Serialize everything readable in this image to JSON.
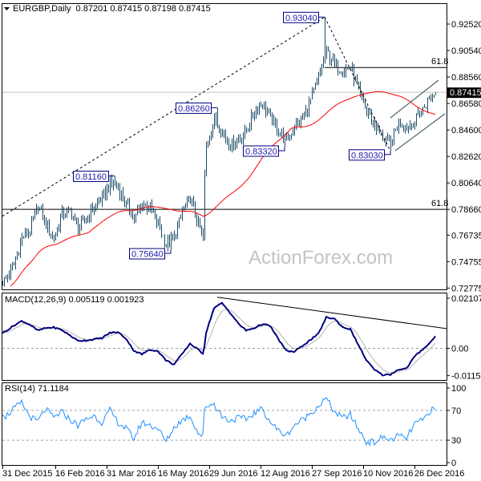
{
  "header": {
    "symbol_label": "EURGBP,Daily",
    "ohlc_text": "0.87201 0.87415 0.87198 0.87415",
    "menu_icon": "triangle-down-icon"
  },
  "watermark": "ActionForex.com",
  "colors": {
    "bars": "#1b4a66",
    "moving_average": "#ff0000",
    "macd": "#000080",
    "macd_signal": "#b4b4b4",
    "rsi": "#1e90ff",
    "annotation_border": "#000080",
    "annotation_text": "#1c1cb0",
    "current_price_bg": "#000000"
  },
  "chart_data": [
    {
      "type": "bar",
      "title": "EURGBP,Daily",
      "subtitle": "0.87201 0.87415 0.87198 0.87415",
      "last_bar": {
        "open": 0.87201,
        "high": 0.87415,
        "low": 0.87198,
        "close": 0.87415
      },
      "current_price_label": "0.87415",
      "y_ticks": [
        "0.92520",
        "0.90540",
        "0.88560",
        "0.86580",
        "0.84600",
        "0.82620",
        "0.80640",
        "0.78660",
        "0.76735",
        "0.74755",
        "0.72775"
      ],
      "ylim": [
        0.72775,
        0.9252
      ],
      "x_ticks": [
        {
          "date": "2015-12-31",
          "label": "31 Dec 2015"
        },
        {
          "date": "2016-02-16",
          "label": "16 Feb 2016"
        },
        {
          "date": "2016-03-31",
          "label": "31 Mar 2016"
        },
        {
          "date": "2016-05-16",
          "label": "16 May 2016"
        },
        {
          "date": "2016-06-29",
          "label": "29 Jun 2016"
        },
        {
          "date": "2016-08-12",
          "label": "12 Aug 2016"
        },
        {
          "date": "2016-09-27",
          "label": "27 Sep 2016"
        },
        {
          "date": "2016-11-10",
          "label": "10 Nov 2016"
        },
        {
          "date": "2016-12-26",
          "label": "26 Dec 2016"
        }
      ],
      "series_dates": [
        "2015-12-31",
        "2016-01-04",
        "2016-01-11",
        "2016-01-18",
        "2016-01-25",
        "2016-02-01",
        "2016-02-08",
        "2016-02-15",
        "2016-02-22",
        "2016-02-29",
        "2016-03-07",
        "2016-03-14",
        "2016-03-21",
        "2016-03-28",
        "2016-04-04",
        "2016-04-11",
        "2016-04-18",
        "2016-04-25",
        "2016-05-02",
        "2016-05-09",
        "2016-05-16",
        "2016-05-23",
        "2016-05-30",
        "2016-06-06",
        "2016-06-13",
        "2016-06-20",
        "2016-06-23",
        "2016-06-24",
        "2016-06-27",
        "2016-07-04",
        "2016-07-11",
        "2016-07-18",
        "2016-07-25",
        "2016-08-01",
        "2016-08-08",
        "2016-08-15",
        "2016-08-22",
        "2016-08-29",
        "2016-09-05",
        "2016-09-12",
        "2016-09-19",
        "2016-09-26",
        "2016-10-03",
        "2016-10-10",
        "2016-10-17",
        "2016-10-24",
        "2016-10-31",
        "2016-11-07",
        "2016-11-14",
        "2016-11-21",
        "2016-11-28",
        "2016-12-05",
        "2016-12-12",
        "2016-12-19",
        "2016-12-26",
        "2017-01-02",
        "2017-01-09",
        "2017-01-12"
      ],
      "close_approx": [
        0.733,
        0.735,
        0.745,
        0.765,
        0.77,
        0.79,
        0.775,
        0.765,
        0.783,
        0.785,
        0.772,
        0.78,
        0.788,
        0.795,
        0.806,
        0.803,
        0.79,
        0.78,
        0.79,
        0.788,
        0.775,
        0.76,
        0.765,
        0.785,
        0.795,
        0.775,
        0.765,
        0.812,
        0.835,
        0.855,
        0.845,
        0.835,
        0.84,
        0.845,
        0.86,
        0.866,
        0.855,
        0.845,
        0.838,
        0.848,
        0.855,
        0.868,
        0.885,
        0.905,
        0.895,
        0.89,
        0.893,
        0.875,
        0.86,
        0.85,
        0.84,
        0.835,
        0.852,
        0.848,
        0.853,
        0.862,
        0.87,
        0.87415
      ],
      "moving_average": "red line",
      "annotations": [
        {
          "date": "2016-10-07",
          "price": 0.9304,
          "label": "0.93040",
          "kind": "high"
        },
        {
          "date": "2016-07-06",
          "price": 0.8626,
          "label": "0.86260",
          "kind": "high"
        },
        {
          "date": "2016-04-07",
          "price": 0.8116,
          "label": "0.81160",
          "kind": "high"
        },
        {
          "date": "2016-05-26",
          "price": 0.7564,
          "label": "0.75640",
          "kind": "low"
        },
        {
          "date": "2016-09-02",
          "price": 0.8332,
          "label": "0.83320",
          "kind": "low"
        },
        {
          "date": "2016-12-05",
          "price": 0.8303,
          "label": "0.83030",
          "kind": "low"
        }
      ],
      "fib_levels": [
        {
          "label": "61.8",
          "price": 0.7866,
          "from": "2015-12-31"
        },
        {
          "label": "61.8",
          "price": 0.8927,
          "from": "2016-10-07"
        }
      ],
      "trend_lines": [
        {
          "style": "dotted",
          "points": [
            {
              "date": "2015-12-31",
              "price": 0.7815
            },
            {
              "date": "2016-10-07",
              "price": 0.9304
            }
          ]
        },
        {
          "style": "dotted",
          "points": [
            {
              "date": "2016-10-07",
              "price": 0.9304
            },
            {
              "date": "2016-12-05",
              "price": 0.8303
            }
          ]
        },
        {
          "style": "channel",
          "points": [
            {
              "date": "2016-12-05",
              "price": 0.8551
            },
            {
              "date": "2017-01-16",
              "price": 0.8832
            }
          ]
        },
        {
          "style": "channel",
          "points": [
            {
              "date": "2016-12-08",
              "price": 0.8305
            },
            {
              "date": "2017-01-20",
              "price": 0.8581
            }
          ]
        }
      ]
    },
    {
      "type": "line",
      "title": "MACD(12,26,9) 0.005119 0.001923",
      "y_ticks": [
        "0.021074",
        "0.00",
        "-0.011507"
      ],
      "ylim": [
        -0.011507,
        0.021074
      ],
      "macd_approx": [
        0.0065,
        0.0072,
        0.0095,
        0.0115,
        0.01,
        0.0075,
        0.0085,
        0.0088,
        0.0077,
        0.0055,
        0.0032,
        0.0033,
        0.0038,
        0.0043,
        0.0065,
        0.0068,
        0.0042,
        -0.001,
        -0.0025,
        -0.0005,
        -0.0012,
        -0.005,
        -0.0068,
        -0.0025,
        0.002,
        -0.0005,
        -0.0021,
        0.001,
        0.0065,
        0.017,
        0.019,
        0.015,
        0.0105,
        0.0075,
        0.0085,
        0.0102,
        0.0094,
        0.004,
        -0.001,
        -0.0015,
        0.001,
        0.0035,
        0.006,
        0.013,
        0.0125,
        0.009,
        0.008,
        0.0015,
        -0.005,
        -0.009,
        -0.0112,
        -0.011,
        -0.0089,
        -0.0085,
        -0.0035,
        -0.0005,
        0.0025,
        0.005119
      ],
      "signal_last": 0.001923,
      "trend_line": [
        {
          "date": "2016-07-06",
          "value": 0.0215
        },
        {
          "date": "2017-01-23",
          "value": 0.0083
        }
      ]
    },
    {
      "type": "line",
      "title": "RSI(14) 71.1184",
      "y_ticks": [
        "100",
        "70",
        "30",
        "0"
      ],
      "ylim": [
        0,
        100
      ],
      "levels": [
        70,
        30
      ],
      "rsi_approx": [
        68,
        62,
        72,
        80,
        62,
        55,
        72,
        60,
        68,
        58,
        50,
        58,
        63,
        54,
        70,
        54,
        46,
        32,
        54,
        50,
        46,
        28,
        47,
        57,
        63,
        40,
        35,
        70,
        76,
        79,
        62,
        56,
        60,
        58,
        66,
        72,
        55,
        43,
        36,
        50,
        57,
        66,
        76,
        86,
        68,
        60,
        64,
        45,
        28,
        27,
        34,
        30,
        36,
        32,
        52,
        56,
        70,
        71.1184
      ]
    }
  ]
}
